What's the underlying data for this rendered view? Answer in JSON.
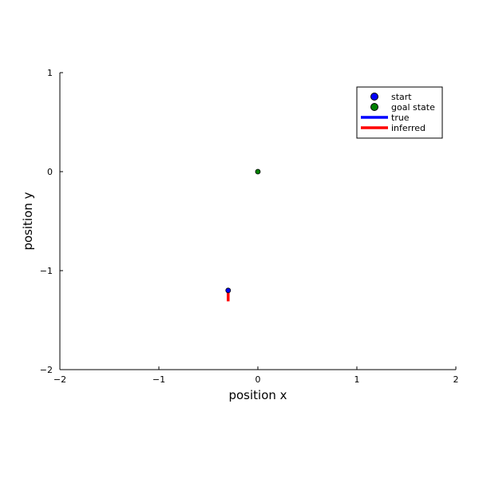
{
  "chart_data": {
    "type": "scatter",
    "xlabel": "position x",
    "ylabel": "position y",
    "xlim": [
      -2,
      2
    ],
    "ylim": [
      -2,
      1
    ],
    "xticks": [
      {
        "value": -2,
        "label": "−2"
      },
      {
        "value": -1,
        "label": "−1"
      },
      {
        "value": 0,
        "label": "0"
      },
      {
        "value": 1,
        "label": "1"
      },
      {
        "value": 2,
        "label": "2"
      }
    ],
    "yticks": [
      {
        "value": -2,
        "label": "−2"
      },
      {
        "value": -1,
        "label": "−1"
      },
      {
        "value": 0,
        "label": "0"
      },
      {
        "value": 1,
        "label": "1"
      }
    ],
    "grid": false,
    "legend_position": "top-right",
    "series": [
      {
        "name": "start",
        "kind": "point",
        "color": "#0000ff",
        "points": [
          {
            "x": -0.3,
            "y": -1.2
          }
        ]
      },
      {
        "name": "goal state",
        "kind": "point",
        "color": "#008000",
        "points": [
          {
            "x": 0.0,
            "y": 0.0
          }
        ]
      },
      {
        "name": "true",
        "kind": "line",
        "color": "#0000ff",
        "points": [
          {
            "x": -0.3,
            "y": -1.2
          },
          {
            "x": -0.3,
            "y": -1.22
          }
        ]
      },
      {
        "name": "inferred",
        "kind": "line",
        "color": "#ff0000",
        "points": [
          {
            "x": -0.3,
            "y": -1.21
          },
          {
            "x": -0.3,
            "y": -1.31
          }
        ]
      }
    ]
  }
}
